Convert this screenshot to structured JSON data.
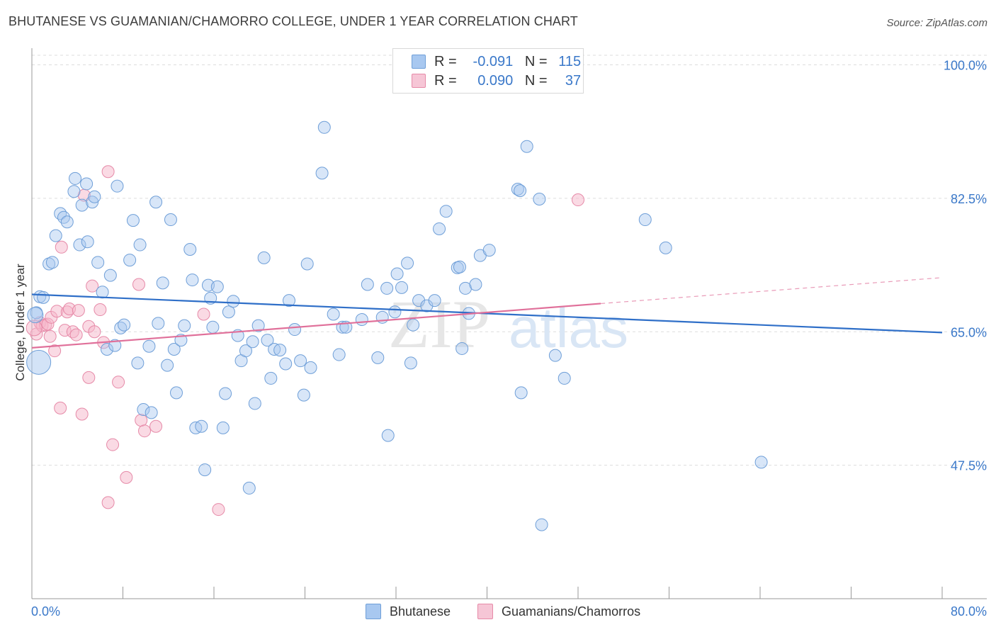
{
  "header": {
    "title": "BHUTANESE VS GUAMANIAN/CHAMORRO COLLEGE, UNDER 1 YEAR CORRELATION CHART",
    "source": "Source: ZipAtlas.com"
  },
  "legend": {
    "rows": [
      {
        "r_label": "R =",
        "r_value": "-0.091",
        "n_label": "N =",
        "n_value": "115"
      },
      {
        "r_label": "R =",
        "r_value": "0.090",
        "n_label": "N =",
        "n_value": "37"
      }
    ]
  },
  "watermark": {
    "part1": "ZIP",
    "part2": "atlas"
  },
  "colors": {
    "blue_fill": "#a8c8f0",
    "blue_stroke": "#6f9fd8",
    "blue_line": "#2f6fc8",
    "pink_fill": "#f6b6ca",
    "pink_stroke": "#e68aa8",
    "pink_line": "#e0709a",
    "axis_text": "#3a78c9",
    "grid": "#dddddd"
  },
  "chart_data": {
    "type": "scatter",
    "title": "BHUTANESE VS GUAMANIAN/CHAMORRO COLLEGE, UNDER 1 YEAR CORRELATION CHART",
    "xlabel": "",
    "ylabel": "College, Under 1 year",
    "xlim": [
      0,
      80
    ],
    "ylim": [
      30,
      102
    ],
    "x_tick_labels": [
      "0.0%",
      "80.0%"
    ],
    "y_ticks": [
      47.5,
      65.0,
      82.5,
      100.0
    ],
    "y_tick_labels": [
      "47.5%",
      "65.0%",
      "82.5%",
      "100.0%"
    ],
    "legend_position": "bottom",
    "series": [
      {
        "name": "Bhutanese",
        "r": -0.091,
        "n": 115,
        "trend": {
          "x": [
            0,
            80
          ],
          "y": [
            69.9,
            64.9
          ]
        },
        "points": [
          [
            0.4,
            67.5
          ],
          [
            0.7,
            69.6
          ],
          [
            1.0,
            69.5
          ],
          [
            1.5,
            73.9
          ],
          [
            1.8,
            74.1
          ],
          [
            2.1,
            77.6
          ],
          [
            2.5,
            80.5
          ],
          [
            2.8,
            80.0
          ],
          [
            3.1,
            79.4
          ],
          [
            3.7,
            83.4
          ],
          [
            3.8,
            85.1
          ],
          [
            4.2,
            76.4
          ],
          [
            4.4,
            81.6
          ],
          [
            4.8,
            84.4
          ],
          [
            4.9,
            76.8
          ],
          [
            5.3,
            82.0
          ],
          [
            5.5,
            82.7
          ],
          [
            5.8,
            74.1
          ],
          [
            6.2,
            70.2
          ],
          [
            6.6,
            62.7
          ],
          [
            6.9,
            72.4
          ],
          [
            7.3,
            63.2
          ],
          [
            7.5,
            84.1
          ],
          [
            7.8,
            65.5
          ],
          [
            8.1,
            65.9
          ],
          [
            8.6,
            74.4
          ],
          [
            8.9,
            79.6
          ],
          [
            9.3,
            60.9
          ],
          [
            9.5,
            76.4
          ],
          [
            9.8,
            54.8
          ],
          [
            10.3,
            63.1
          ],
          [
            10.5,
            54.4
          ],
          [
            10.9,
            82.0
          ],
          [
            11.1,
            66.1
          ],
          [
            11.5,
            71.4
          ],
          [
            11.9,
            60.6
          ],
          [
            12.2,
            79.7
          ],
          [
            12.5,
            62.7
          ],
          [
            12.7,
            57.0
          ],
          [
            13.1,
            63.9
          ],
          [
            13.4,
            65.8
          ],
          [
            13.9,
            75.8
          ],
          [
            14.1,
            71.8
          ],
          [
            14.4,
            52.4
          ],
          [
            14.9,
            52.6
          ],
          [
            15.2,
            46.9
          ],
          [
            15.5,
            71.1
          ],
          [
            15.7,
            69.4
          ],
          [
            15.9,
            65.6
          ],
          [
            16.3,
            70.9
          ],
          [
            16.8,
            52.4
          ],
          [
            17.0,
            56.9
          ],
          [
            17.3,
            67.6
          ],
          [
            17.7,
            69.0
          ],
          [
            18.1,
            64.5
          ],
          [
            18.4,
            61.2
          ],
          [
            18.8,
            62.5
          ],
          [
            19.1,
            44.5
          ],
          [
            19.4,
            63.7
          ],
          [
            19.6,
            55.6
          ],
          [
            19.9,
            65.8
          ],
          [
            20.4,
            74.7
          ],
          [
            20.7,
            63.9
          ],
          [
            21.0,
            58.9
          ],
          [
            21.3,
            62.7
          ],
          [
            21.8,
            62.6
          ],
          [
            22.3,
            60.8
          ],
          [
            22.6,
            69.1
          ],
          [
            23.1,
            65.3
          ],
          [
            23.6,
            61.2
          ],
          [
            23.9,
            56.7
          ],
          [
            24.2,
            73.9
          ],
          [
            24.5,
            60.3
          ],
          [
            25.5,
            85.8
          ],
          [
            25.7,
            91.8
          ],
          [
            26.5,
            67.3
          ],
          [
            27.0,
            62.0
          ],
          [
            27.3,
            65.6
          ],
          [
            27.6,
            65.6
          ],
          [
            29.0,
            66.6
          ],
          [
            29.5,
            71.2
          ],
          [
            30.4,
            61.6
          ],
          [
            30.8,
            66.9
          ],
          [
            31.2,
            70.7
          ],
          [
            31.3,
            51.4
          ],
          [
            31.9,
            67.6
          ],
          [
            32.1,
            72.6
          ],
          [
            32.5,
            70.8
          ],
          [
            33.0,
            74.0
          ],
          [
            33.3,
            60.9
          ],
          [
            33.5,
            65.9
          ],
          [
            34.0,
            69.1
          ],
          [
            34.7,
            68.4
          ],
          [
            35.4,
            69.1
          ],
          [
            35.8,
            78.5
          ],
          [
            36.4,
            80.8
          ],
          [
            37.4,
            73.4
          ],
          [
            37.6,
            73.5
          ],
          [
            37.8,
            62.8
          ],
          [
            38.1,
            70.7
          ],
          [
            38.4,
            67.4
          ],
          [
            39.0,
            71.2
          ],
          [
            39.4,
            75.0
          ],
          [
            40.2,
            75.7
          ],
          [
            42.7,
            83.7
          ],
          [
            42.9,
            83.5
          ],
          [
            43.0,
            57.0
          ],
          [
            43.5,
            89.3
          ],
          [
            44.6,
            82.4
          ],
          [
            46.0,
            61.9
          ],
          [
            46.8,
            58.9
          ],
          [
            53.9,
            79.7
          ],
          [
            55.7,
            76.0
          ],
          [
            64.1,
            47.9
          ],
          [
            44.8,
            39.7
          ]
        ]
      },
      {
        "name": "Guamanians/Chamorros",
        "r": 0.09,
        "n": 37,
        "trend": {
          "x": [
            0,
            50
          ],
          "y": [
            62.9,
            68.7
          ]
        },
        "trend_dashed": {
          "x": [
            50,
            80
          ],
          "y": [
            68.7,
            72.1
          ]
        },
        "points": [
          [
            0.4,
            64.7
          ],
          [
            0.7,
            66.2
          ],
          [
            0.9,
            65.8
          ],
          [
            1.2,
            65.9
          ],
          [
            1.4,
            66.0
          ],
          [
            1.6,
            64.4
          ],
          [
            1.7,
            66.9
          ],
          [
            2.0,
            62.5
          ],
          [
            2.2,
            67.7
          ],
          [
            2.5,
            55.0
          ],
          [
            2.6,
            76.1
          ],
          [
            2.9,
            65.2
          ],
          [
            3.1,
            67.6
          ],
          [
            3.3,
            68.0
          ],
          [
            3.6,
            65.0
          ],
          [
            3.9,
            64.6
          ],
          [
            4.1,
            67.8
          ],
          [
            4.4,
            54.2
          ],
          [
            4.6,
            82.9
          ],
          [
            5.0,
            65.7
          ],
          [
            5.0,
            59.0
          ],
          [
            5.3,
            71.0
          ],
          [
            5.5,
            65.0
          ],
          [
            6.0,
            67.9
          ],
          [
            6.3,
            63.6
          ],
          [
            6.7,
            86.0
          ],
          [
            6.7,
            42.6
          ],
          [
            7.1,
            50.2
          ],
          [
            7.6,
            58.4
          ],
          [
            8.3,
            45.9
          ],
          [
            9.4,
            71.2
          ],
          [
            9.6,
            53.4
          ],
          [
            9.9,
            52.0
          ],
          [
            10.9,
            52.6
          ],
          [
            15.1,
            67.3
          ],
          [
            16.4,
            41.7
          ],
          [
            48.0,
            82.3
          ]
        ]
      }
    ]
  },
  "bottom_legend": {
    "items": [
      {
        "label": "Bhutanese"
      },
      {
        "label": "Guamanians/Chamorros"
      }
    ]
  }
}
